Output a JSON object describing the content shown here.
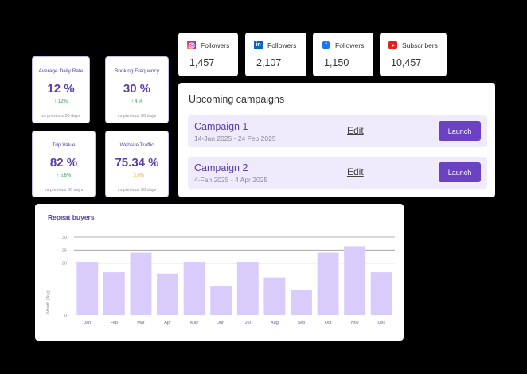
{
  "kpis": [
    {
      "label": "Average Daily Rate",
      "value": "12 %",
      "delta": "↑ 12%",
      "note": "vs previous 30 days"
    },
    {
      "label": "Booking Frequency",
      "value": "30 %",
      "delta": "↑ 4 %",
      "note": "vs previous 30 days"
    },
    {
      "label": "Trip Value",
      "value": "82 %",
      "delta": "↑ 5.6%",
      "note": "vs previous 30 days"
    },
    {
      "label": "Website Traffic",
      "value": "75.34 %",
      "delta": "↓ 3.6%",
      "note": "vs previous 30 days"
    }
  ],
  "socials": [
    {
      "icon": "instagram-icon",
      "label": "Followers",
      "value": "1,457",
      "color": "#d6249f"
    },
    {
      "icon": "linkedin-icon",
      "label": "Followers",
      "value": "2,107",
      "color": "#0a66c2"
    },
    {
      "icon": "facebook-icon",
      "label": "Followers",
      "value": "1,150",
      "color": "#1877f2"
    },
    {
      "icon": "youtube-icon",
      "label": "Subscribers",
      "value": "10,457",
      "color": "#e62117"
    }
  ],
  "campaigns": {
    "title": "Upcoming campaigns",
    "edit_label": "Edit",
    "launch_label": "Launch",
    "items": [
      {
        "name": "Campaign 1",
        "dates": "14-Jan 2025 - 24 Feb 2025"
      },
      {
        "name": "Campaign 2",
        "dates": "4-Fan 2025 - 4 Apr 2025"
      }
    ]
  },
  "chart_data": {
    "type": "bar",
    "title": "Repeat buyers",
    "ylabel": "Month (Avg)",
    "xlabel": "",
    "categories": [
      "Jan",
      "Feb",
      "Mar",
      "Apr",
      "May",
      "Jun",
      "Jul",
      "Aug",
      "Sep",
      "Oct",
      "Nov",
      "Dec"
    ],
    "values": [
      20.5,
      16.5,
      24,
      16,
      20.5,
      11,
      20.5,
      14.5,
      9.5,
      24,
      26.5,
      16.5
    ],
    "ylim": [
      0,
      30
    ],
    "yticks": [
      "0",
      "20",
      "25",
      "30"
    ],
    "grid": true,
    "bar_color": "#d9ccfb"
  }
}
